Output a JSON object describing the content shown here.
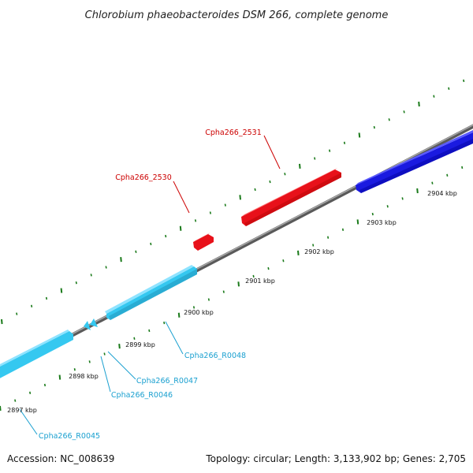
{
  "title": "Chlorobium phaeobacteroides DSM 266, complete genome",
  "footer": {
    "accession": "Accession: NC_008639",
    "summary": "Topology: circular; Length: 3,133,902 bp; Genes: 2,705"
  },
  "colors": {
    "forward_gene": "#e8111a",
    "forward_gene_dark": "#1a1ae0",
    "rna": "#35c8f0",
    "backbone": "#808080",
    "tick": "#1a7a1a",
    "label_forward": "#cc0000",
    "label_rna": "#1aa0d0"
  },
  "ticks": [
    {
      "label": "2897 kbp"
    },
    {
      "label": "2898 kbp"
    },
    {
      "label": "2899 kbp"
    },
    {
      "label": "2900 kbp"
    },
    {
      "label": "2901 kbp"
    },
    {
      "label": "2902 kbp"
    },
    {
      "label": "2903 kbp"
    },
    {
      "label": "2904 kbp"
    }
  ],
  "gene_labels": [
    {
      "name": "Cpha266_2531",
      "kind": "forward"
    },
    {
      "name": "Cpha266_2530",
      "kind": "forward"
    },
    {
      "name": "Cpha266_R0048",
      "kind": "rna"
    },
    {
      "name": "Cpha266_R0047",
      "kind": "rna"
    },
    {
      "name": "Cpha266_R0046",
      "kind": "rna"
    },
    {
      "name": "Cpha266_R0045",
      "kind": "rna"
    }
  ]
}
